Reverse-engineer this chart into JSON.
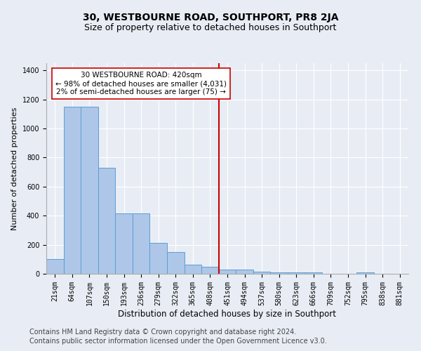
{
  "title": "30, WESTBOURNE ROAD, SOUTHPORT, PR8 2JA",
  "subtitle": "Size of property relative to detached houses in Southport",
  "xlabel": "Distribution of detached houses by size in Southport",
  "ylabel": "Number of detached properties",
  "categories": [
    "21sqm",
    "64sqm",
    "107sqm",
    "150sqm",
    "193sqm",
    "236sqm",
    "279sqm",
    "322sqm",
    "365sqm",
    "408sqm",
    "451sqm",
    "494sqm",
    "537sqm",
    "580sqm",
    "623sqm",
    "666sqm",
    "709sqm",
    "752sqm",
    "795sqm",
    "838sqm",
    "881sqm"
  ],
  "values": [
    100,
    1150,
    1150,
    730,
    415,
    415,
    215,
    150,
    65,
    50,
    30,
    30,
    15,
    12,
    12,
    12,
    0,
    0,
    10,
    0,
    0
  ],
  "bar_color": "#aec6e8",
  "bar_edge_color": "#5a9fd4",
  "vline_x": 9.5,
  "vline_color": "#cc0000",
  "annotation_text": "30 WESTBOURNE ROAD: 420sqm\n← 98% of detached houses are smaller (4,031)\n2% of semi-detached houses are larger (75) →",
  "annotation_box_color": "#ffffff",
  "annotation_box_edge": "#cc0000",
  "ylim": [
    0,
    1450
  ],
  "yticks": [
    0,
    200,
    400,
    600,
    800,
    1000,
    1200,
    1400
  ],
  "bg_color": "#e8edf5",
  "footer1": "Contains HM Land Registry data © Crown copyright and database right 2024.",
  "footer2": "Contains public sector information licensed under the Open Government Licence v3.0.",
  "title_fontsize": 10,
  "subtitle_fontsize": 9,
  "tick_fontsize": 7,
  "ylabel_fontsize": 8,
  "xlabel_fontsize": 8.5,
  "footer_fontsize": 7,
  "annot_fontsize": 7.5
}
